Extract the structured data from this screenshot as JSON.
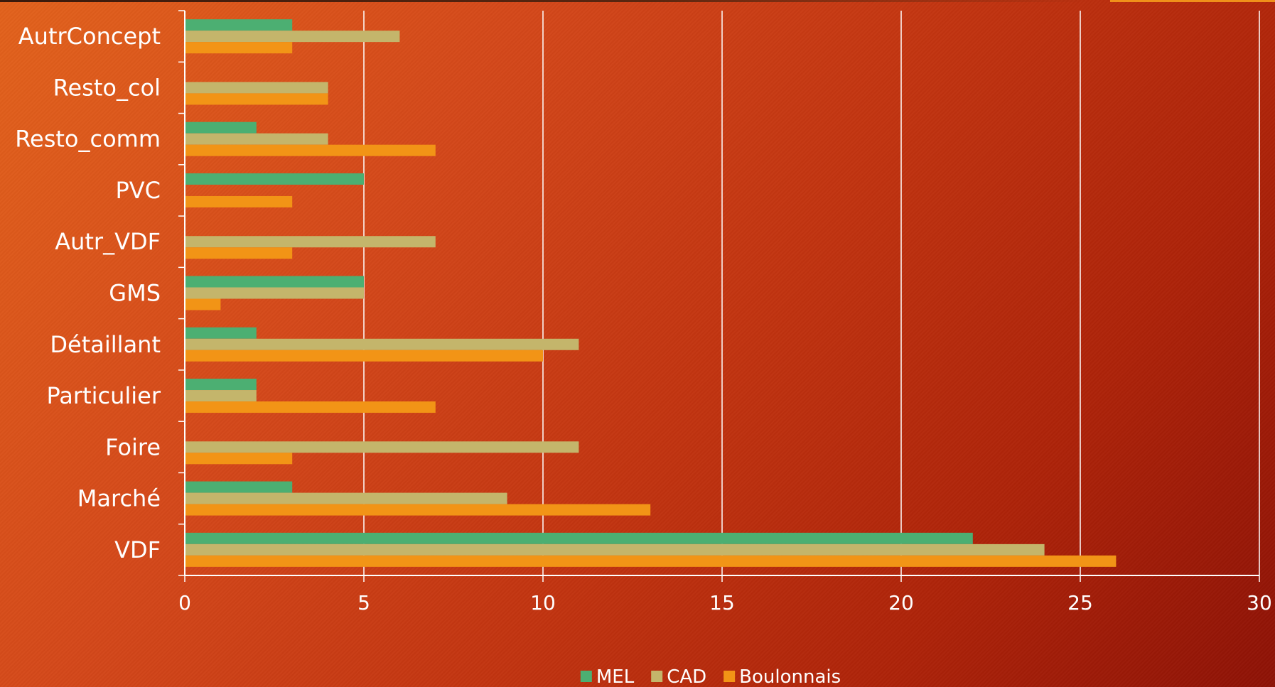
{
  "chart_data": {
    "type": "bar",
    "orientation": "horizontal",
    "categories": [
      "AutrConcept",
      "Resto_col",
      "Resto_comm",
      "PVC",
      "Autr_VDF",
      "GMS",
      "Détaillant",
      "Particulier",
      "Foire",
      "Marché",
      "VDF"
    ],
    "series": [
      {
        "name": "MEL",
        "color": "#4caf72",
        "values": [
          3,
          0,
          2,
          5,
          0,
          5,
          2,
          2,
          0,
          3,
          22
        ]
      },
      {
        "name": "CAD",
        "color": "#c4b56b",
        "values": [
          6,
          4,
          4,
          0,
          7,
          5,
          11,
          2,
          11,
          9,
          24
        ]
      },
      {
        "name": "Boulonnais",
        "color": "#f29416",
        "values": [
          3,
          4,
          7,
          3,
          3,
          1,
          10,
          7,
          3,
          13,
          26
        ]
      }
    ],
    "xlim": [
      0,
      30
    ],
    "xticks": [
      "0",
      "5",
      "10",
      "15",
      "20",
      "25",
      "30"
    ],
    "grid": true,
    "legend": "bottom"
  }
}
